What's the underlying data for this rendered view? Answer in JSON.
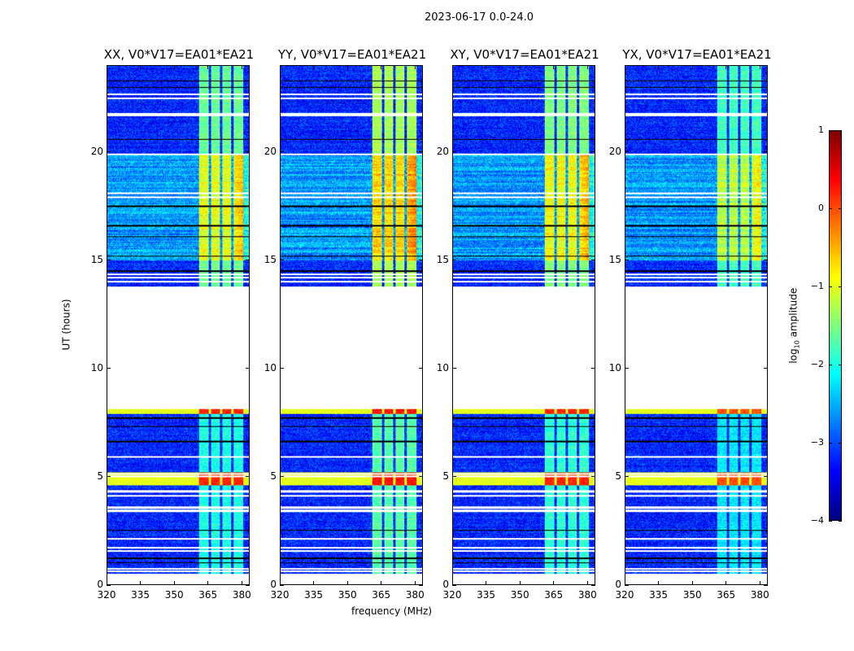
{
  "chart_data": {
    "type": "heatmap",
    "title": "2023-06-17 0.0-24.0",
    "xlabel": "frequency (MHz)",
    "ylabel": "UT (hours)",
    "xlim": [
      320,
      383.5
    ],
    "ylim": [
      0,
      24
    ],
    "x_ticks": [
      320,
      335,
      350,
      365,
      380
    ],
    "y_ticks": [
      0,
      5,
      10,
      15,
      20
    ],
    "panels": [
      {
        "title": "XX, V0*V17=EA01*EA21",
        "band_level": -1.6,
        "hot_level": 0.2
      },
      {
        "title": "YY, V0*V17=EA01*EA21",
        "band_level": -1.3,
        "hot_level": 0.3
      },
      {
        "title": "XY, V0*V17=EA01*EA21",
        "band_level": -1.5,
        "hot_level": 0.2
      },
      {
        "title": "YX, V0*V17=EA01*EA21",
        "band_level": -1.8,
        "hot_level": 0.0
      }
    ],
    "data_time_ranges_hours": [
      [
        0.5,
        8.1
      ],
      [
        13.8,
        24.0
      ]
    ],
    "noisy_time_range_hours": [
      15.0,
      19.9
    ],
    "bright_channels_mhz": [
      [
        361,
        365.5
      ],
      [
        366.5,
        370.5
      ],
      [
        371.5,
        375.5
      ],
      [
        376.5,
        381
      ]
    ],
    "flagged_rows_hours": [
      0.6,
      0.7,
      1.55,
      1.7,
      2.1,
      3.4,
      3.55,
      4.1,
      4.3,
      5.0,
      5.1,
      5.9,
      14.0,
      14.2,
      14.35,
      17.9,
      18.1,
      19.9,
      21.7,
      21.8,
      22.5,
      22.7
    ],
    "dark_rows_hours": [
      1.0,
      1.2,
      2.5,
      6.6,
      7.3,
      7.7,
      14.5,
      15.2,
      16.1,
      16.6,
      17.5,
      20.6,
      23.0,
      23.3
    ],
    "hot_rows_hours": [
      [
        4.6,
        5.2
      ],
      [
        7.9,
        8.1
      ]
    ],
    "colorbar": {
      "label_main": "log",
      "label_sub": "10",
      "label_rest": " amplitude",
      "range": [
        -4,
        1
      ],
      "ticks": [
        1,
        0,
        -1,
        -2,
        -3,
        -4
      ],
      "colormap": "jet"
    }
  }
}
